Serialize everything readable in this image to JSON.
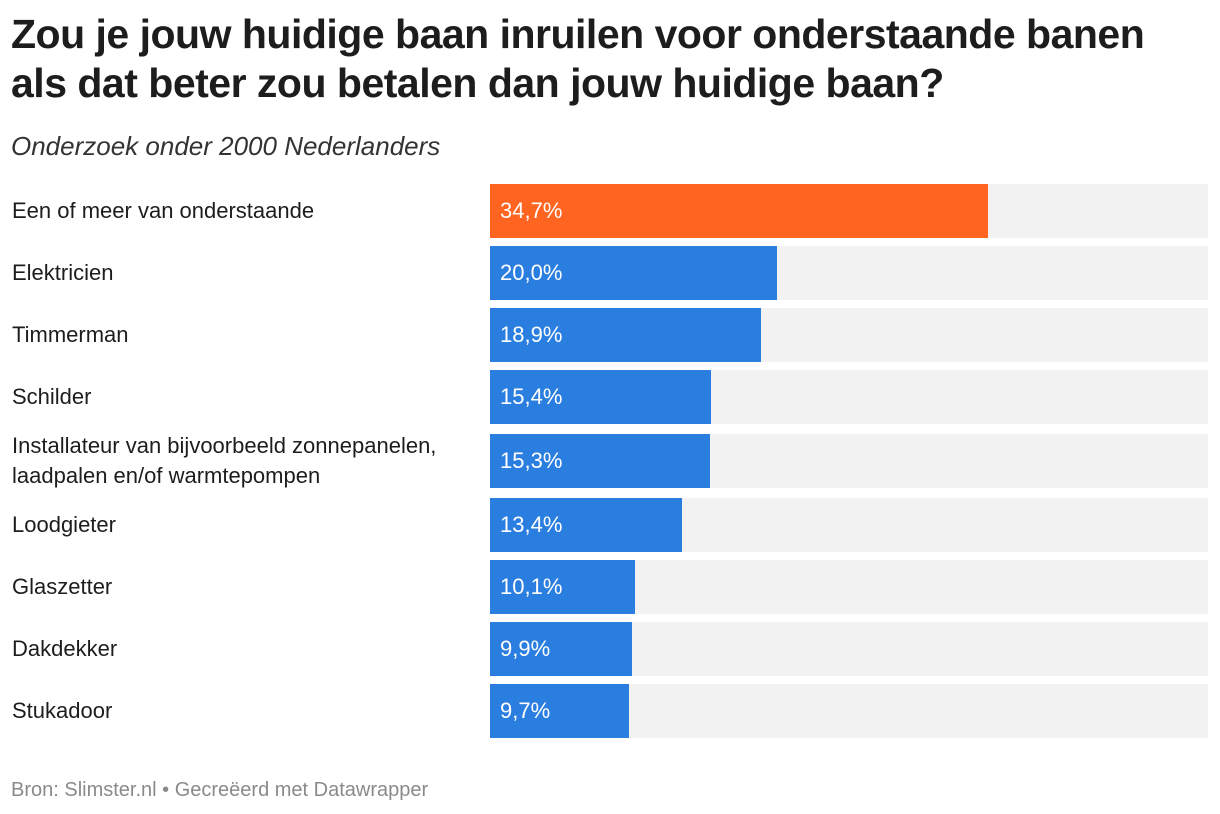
{
  "title": "Zou je jouw huidige baan inruilen voor onderstaande banen als dat beter zou betalen dan jouw huidige baan?",
  "subtitle": "Onderzoek onder 2000 Nederlanders",
  "footer": "Bron: Slimster.nl • Gecreëerd met Datawrapper",
  "colors": {
    "highlight": "#ff6421",
    "bar": "#2a7ee0",
    "track": "#f2f2f2"
  },
  "chart_data": {
    "type": "bar",
    "orientation": "horizontal",
    "categories": [
      "Een of meer van onderstaande",
      "Elektricien",
      "Timmerman",
      "Schilder",
      "Installateur van bijvoorbeeld zonnepanelen, laadpalen en/of warmtepompen",
      "Loodgieter",
      "Glaszetter",
      "Dakdekker",
      "Stukadoor"
    ],
    "values": [
      34.7,
      20.0,
      18.9,
      15.4,
      15.3,
      13.4,
      10.1,
      9.9,
      9.7
    ],
    "value_labels": [
      "34,7%",
      "20,0%",
      "18,9%",
      "15,4%",
      "15,3%",
      "13,4%",
      "10,1%",
      "9,9%",
      "9,7%"
    ],
    "highlighted_index": 0,
    "xlim": [
      0,
      50
    ],
    "unit": "%",
    "grid": false,
    "legend": "none"
  }
}
